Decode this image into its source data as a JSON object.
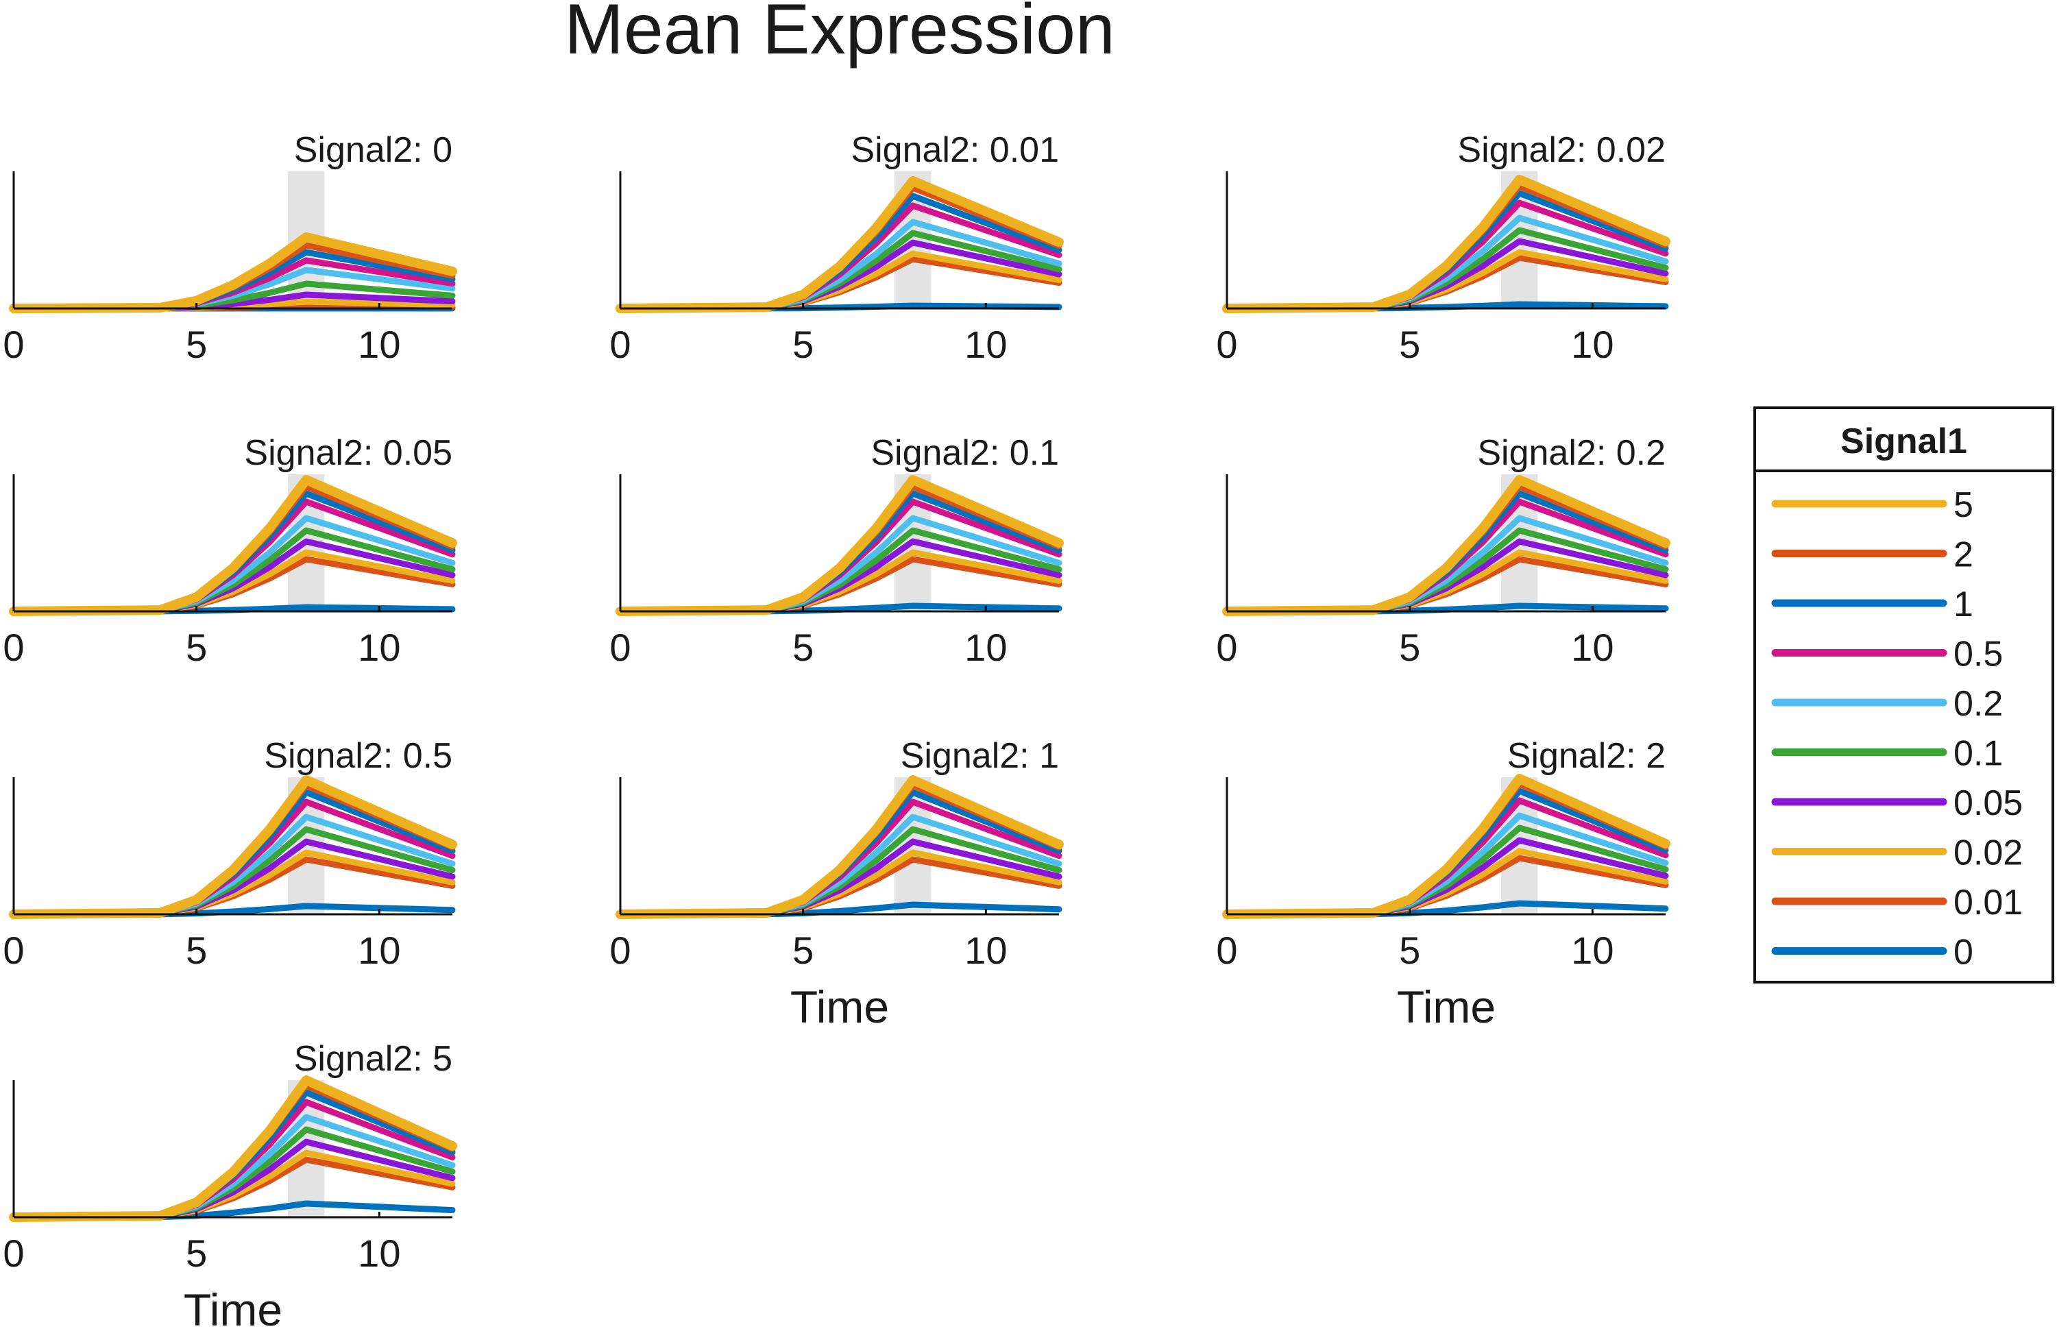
{
  "figure_title": "Mean Expression",
  "chart_data": {
    "type": "line",
    "title": "Mean Expression",
    "xlabel": "Time",
    "ylabel": "",
    "xlim": [
      0,
      12
    ],
    "ylim": [
      0,
      1
    ],
    "xticks": [
      0,
      5,
      10
    ],
    "xtick_labels": [
      "0",
      "5",
      "10"
    ],
    "shaded_band": {
      "x0": 7.5,
      "x1": 8.5,
      "color": "#e3e3e3"
    },
    "time": [
      0,
      1,
      2,
      3,
      4,
      5,
      6,
      7,
      8,
      9,
      10,
      11,
      12
    ],
    "legend": {
      "title": "Signal1",
      "position": "right",
      "entries": [
        {
          "label": "5",
          "color": "#EDB120"
        },
        {
          "label": "2",
          "color": "#D95319"
        },
        {
          "label": "1",
          "color": "#0072BD"
        },
        {
          "label": "0.5",
          "color": "#D4148C"
        },
        {
          "label": "0.2",
          "color": "#4DBEEE"
        },
        {
          "label": "0.1",
          "color": "#3AA535"
        },
        {
          "label": "0.05",
          "color": "#8A17D8"
        },
        {
          "label": "0.02",
          "color": "#EDB120"
        },
        {
          "label": "0.01",
          "color": "#D95319"
        },
        {
          "label": "0",
          "color": "#0072BD"
        }
      ]
    },
    "panels": [
      {
        "title": "Signal2: 0",
        "show_xlabel": false,
        "series": [
          {
            "name": "5",
            "peak": 0.52
          },
          {
            "name": "2",
            "peak": 0.46
          },
          {
            "name": "1",
            "peak": 0.41
          },
          {
            "name": "0.5",
            "peak": 0.35
          },
          {
            "name": "0.2",
            "peak": 0.28
          },
          {
            "name": "0.1",
            "peak": 0.18
          },
          {
            "name": "0.05",
            "peak": 0.1
          },
          {
            "name": "0.02",
            "peak": 0.05
          },
          {
            "name": "0.01",
            "peak": 0.02
          },
          {
            "name": "0",
            "peak": 0.0
          }
        ]
      },
      {
        "title": "Signal2: 0.01",
        "show_xlabel": false,
        "series": [
          {
            "name": "5",
            "peak": 0.93
          },
          {
            "name": "2",
            "peak": 0.88
          },
          {
            "name": "1",
            "peak": 0.82
          },
          {
            "name": "0.5",
            "peak": 0.75
          },
          {
            "name": "0.2",
            "peak": 0.63
          },
          {
            "name": "0.1",
            "peak": 0.55
          },
          {
            "name": "0.05",
            "peak": 0.48
          },
          {
            "name": "0.02",
            "peak": 0.4
          },
          {
            "name": "0.01",
            "peak": 0.36
          },
          {
            "name": "0",
            "peak": 0.02
          }
        ]
      },
      {
        "title": "Signal2: 0.02",
        "show_xlabel": false,
        "series": [
          {
            "name": "5",
            "peak": 0.94
          },
          {
            "name": "2",
            "peak": 0.89
          },
          {
            "name": "1",
            "peak": 0.84
          },
          {
            "name": "0.5",
            "peak": 0.77
          },
          {
            "name": "0.2",
            "peak": 0.66
          },
          {
            "name": "0.1",
            "peak": 0.57
          },
          {
            "name": "0.05",
            "peak": 0.49
          },
          {
            "name": "0.02",
            "peak": 0.41
          },
          {
            "name": "0.01",
            "peak": 0.37
          },
          {
            "name": "0",
            "peak": 0.03
          }
        ]
      },
      {
        "title": "Signal2: 0.05",
        "show_xlabel": false,
        "series": [
          {
            "name": "5",
            "peak": 0.96
          },
          {
            "name": "2",
            "peak": 0.91
          },
          {
            "name": "1",
            "peak": 0.86
          },
          {
            "name": "0.5",
            "peak": 0.8
          },
          {
            "name": "0.2",
            "peak": 0.68
          },
          {
            "name": "0.1",
            "peak": 0.59
          },
          {
            "name": "0.05",
            "peak": 0.51
          },
          {
            "name": "0.02",
            "peak": 0.43
          },
          {
            "name": "0.01",
            "peak": 0.38
          },
          {
            "name": "0",
            "peak": 0.03
          }
        ]
      },
      {
        "title": "Signal2: 0.1",
        "show_xlabel": false,
        "series": [
          {
            "name": "5",
            "peak": 0.96
          },
          {
            "name": "2",
            "peak": 0.91
          },
          {
            "name": "1",
            "peak": 0.86
          },
          {
            "name": "0.5",
            "peak": 0.8
          },
          {
            "name": "0.2",
            "peak": 0.68
          },
          {
            "name": "0.1",
            "peak": 0.59
          },
          {
            "name": "0.05",
            "peak": 0.51
          },
          {
            "name": "0.02",
            "peak": 0.43
          },
          {
            "name": "0.01",
            "peak": 0.38
          },
          {
            "name": "0",
            "peak": 0.04
          }
        ]
      },
      {
        "title": "Signal2: 0.2",
        "show_xlabel": false,
        "series": [
          {
            "name": "5",
            "peak": 0.96
          },
          {
            "name": "2",
            "peak": 0.91
          },
          {
            "name": "1",
            "peak": 0.86
          },
          {
            "name": "0.5",
            "peak": 0.8
          },
          {
            "name": "0.2",
            "peak": 0.68
          },
          {
            "name": "0.1",
            "peak": 0.59
          },
          {
            "name": "0.05",
            "peak": 0.51
          },
          {
            "name": "0.02",
            "peak": 0.43
          },
          {
            "name": "0.01",
            "peak": 0.38
          },
          {
            "name": "0",
            "peak": 0.04
          }
        ]
      },
      {
        "title": "Signal2: 0.5",
        "show_xlabel": false,
        "series": [
          {
            "name": "5",
            "peak": 0.98
          },
          {
            "name": "2",
            "peak": 0.94
          },
          {
            "name": "1",
            "peak": 0.89
          },
          {
            "name": "0.5",
            "peak": 0.82
          },
          {
            "name": "0.2",
            "peak": 0.71
          },
          {
            "name": "0.1",
            "peak": 0.62
          },
          {
            "name": "0.05",
            "peak": 0.53
          },
          {
            "name": "0.02",
            "peak": 0.45
          },
          {
            "name": "0.01",
            "peak": 0.4
          },
          {
            "name": "0",
            "peak": 0.06
          }
        ]
      },
      {
        "title": "Signal2: 1",
        "show_xlabel": true,
        "series": [
          {
            "name": "5",
            "peak": 0.98
          },
          {
            "name": "2",
            "peak": 0.94
          },
          {
            "name": "1",
            "peak": 0.89
          },
          {
            "name": "0.5",
            "peak": 0.82
          },
          {
            "name": "0.2",
            "peak": 0.71
          },
          {
            "name": "0.1",
            "peak": 0.62
          },
          {
            "name": "0.05",
            "peak": 0.53
          },
          {
            "name": "0.02",
            "peak": 0.45
          },
          {
            "name": "0.01",
            "peak": 0.4
          },
          {
            "name": "0",
            "peak": 0.07
          }
        ]
      },
      {
        "title": "Signal2: 2",
        "show_xlabel": true,
        "series": [
          {
            "name": "5",
            "peak": 0.99
          },
          {
            "name": "2",
            "peak": 0.95
          },
          {
            "name": "1",
            "peak": 0.9
          },
          {
            "name": "0.5",
            "peak": 0.83
          },
          {
            "name": "0.2",
            "peak": 0.72
          },
          {
            "name": "0.1",
            "peak": 0.63
          },
          {
            "name": "0.05",
            "peak": 0.54
          },
          {
            "name": "0.02",
            "peak": 0.46
          },
          {
            "name": "0.01",
            "peak": 0.41
          },
          {
            "name": "0",
            "peak": 0.08
          }
        ]
      },
      {
        "title": "Signal2: 5",
        "show_xlabel": true,
        "series": [
          {
            "name": "5",
            "peak": 1.0
          },
          {
            "name": "2",
            "peak": 0.96
          },
          {
            "name": "1",
            "peak": 0.91
          },
          {
            "name": "0.5",
            "peak": 0.84
          },
          {
            "name": "0.2",
            "peak": 0.73
          },
          {
            "name": "0.1",
            "peak": 0.64
          },
          {
            "name": "0.05",
            "peak": 0.55
          },
          {
            "name": "0.02",
            "peak": 0.47
          },
          {
            "name": "0.01",
            "peak": 0.42
          },
          {
            "name": "0",
            "peak": 0.1
          }
        ]
      }
    ]
  }
}
